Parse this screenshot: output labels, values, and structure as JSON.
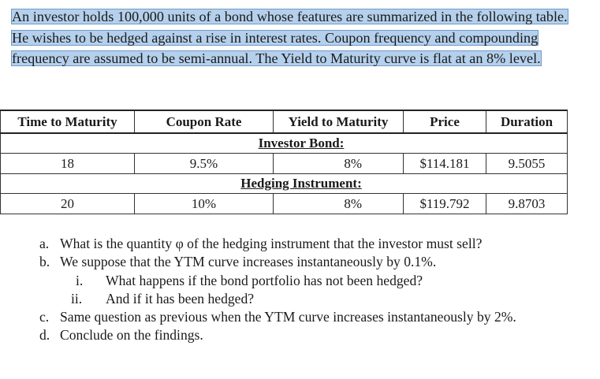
{
  "intro": {
    "text": "An investor holds 100,000 units of a bond whose features are summarized in the following table. He wishes to be hedged against a rise in interest rates. Coupon frequency and compounding frequency are assumed to be semi-annual. The Yield to Maturity curve is flat at an 8% level."
  },
  "table": {
    "headers": [
      "Time to Maturity",
      "Coupon Rate",
      "Yield to Maturity",
      "Price",
      "Duration"
    ],
    "sections": [
      {
        "title": "Investor Bond:",
        "row": [
          "18",
          "9.5%",
          "8%",
          "$114.181",
          "9.5055"
        ]
      },
      {
        "title": "Hedging Instrument:",
        "row": [
          "20",
          "10%",
          "8%",
          "$119.792",
          "9.8703"
        ]
      }
    ]
  },
  "questions": [
    {
      "marker": "a.",
      "text": "What is the quantity φ of the hedging instrument that the investor must sell?"
    },
    {
      "marker": "b.",
      "text": "We suppose that the YTM curve increases instantaneously by 0.1%."
    },
    {
      "marker": "i.",
      "text": "What happens if the bond portfolio has not been hedged?"
    },
    {
      "marker": "ii.",
      "text": "And if it has been hedged?"
    },
    {
      "marker": "c.",
      "text": "Same question as previous when the YTM curve increases instantaneously by 2%."
    },
    {
      "marker": "d.",
      "text": "Conclude on the findings."
    }
  ]
}
